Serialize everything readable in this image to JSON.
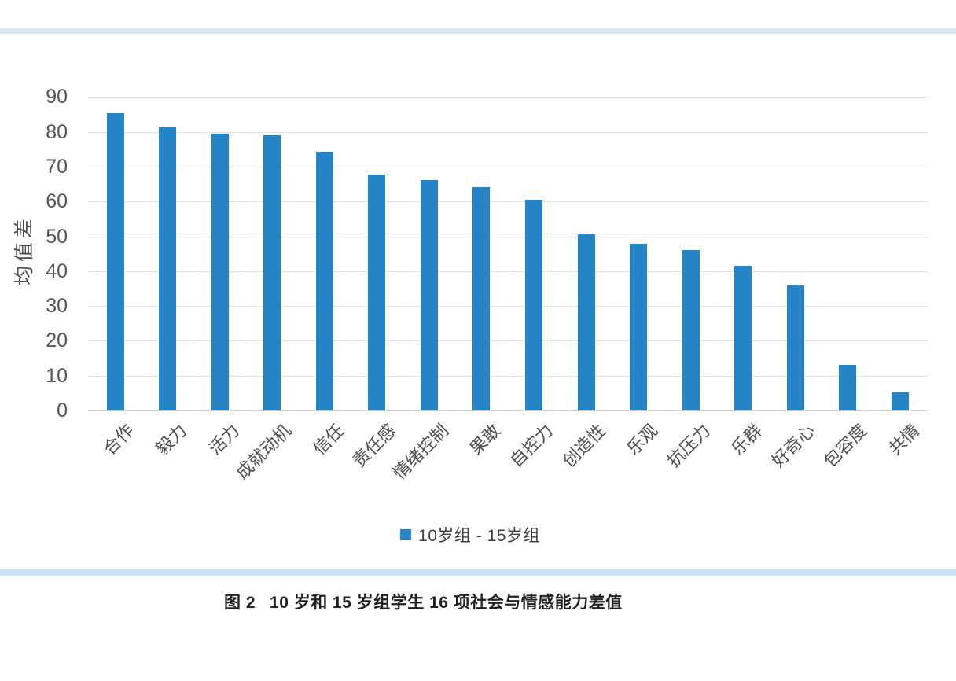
{
  "chart_data": {
    "type": "bar",
    "title": "",
    "xlabel": "",
    "ylabel": "均值差",
    "categories": [
      "合作",
      "毅力",
      "活力",
      "成就动机",
      "信任",
      "责任感",
      "情绪控制",
      "果敢",
      "自控力",
      "创造性",
      "乐观",
      "抗压力",
      "乐群",
      "好奇心",
      "包容度",
      "共情"
    ],
    "values": [
      85.3,
      81.3,
      79.5,
      79.0,
      74.2,
      67.8,
      66.2,
      64.2,
      60.5,
      50.5,
      47.8,
      46.0,
      41.5,
      36.0,
      13.2,
      5.1
    ],
    "ylim": [
      0,
      90
    ],
    "ytick_interval": 10,
    "yticks": [
      0,
      10,
      20,
      30,
      40,
      50,
      60,
      70,
      80,
      90
    ],
    "grid": true,
    "legend_position": "bottom",
    "legend": {
      "label": "10岁组 - 15岁组",
      "marker_color": "#2484c6"
    },
    "bar_color": "#2484c6"
  },
  "caption": {
    "figure_label": "图 2",
    "text": "10 岁和 15 岁组学生 16 项社会与情感能力差值"
  },
  "decor": {
    "top_strip_color": "#d6e8f4",
    "bottom_strip_color": "#cbe3f2"
  }
}
